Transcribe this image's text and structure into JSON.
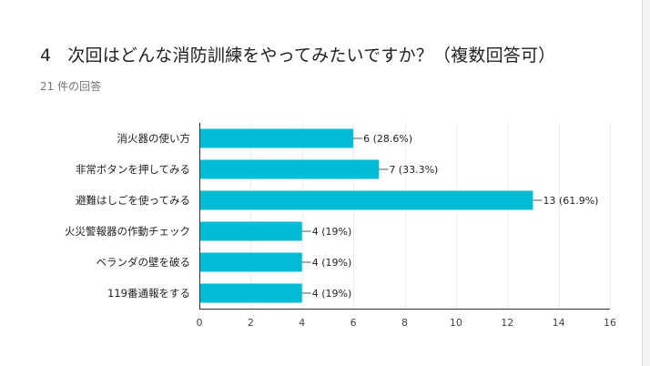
{
  "question": {
    "number": "4",
    "title": "次回はどんな消防訓練をやってみたいですか？（複数回答可）",
    "response_count": "21 件の回答"
  },
  "colors": {
    "bar": "#00bcd4",
    "grid": "#ebebeb",
    "axis": "#333333"
  },
  "chart_data": {
    "type": "bar",
    "orientation": "horizontal",
    "categories": [
      "消火器の使い方",
      "非常ボタンを押してみる",
      "避難はしごを使ってみる",
      "火災警報器の作動チェック",
      "ベランダの壁を破る",
      "119番通報をする"
    ],
    "values": [
      6,
      7,
      13,
      4,
      4,
      4
    ],
    "value_labels": [
      "6 (28.6%)",
      "7 (33.3%)",
      "13 (61.9%)",
      "4 (19%)",
      "4 (19%)",
      "4 (19%)"
    ],
    "xlim": [
      0,
      16
    ],
    "xticks": [
      0,
      2,
      4,
      6,
      8,
      10,
      12,
      14,
      16
    ],
    "grid": true
  }
}
